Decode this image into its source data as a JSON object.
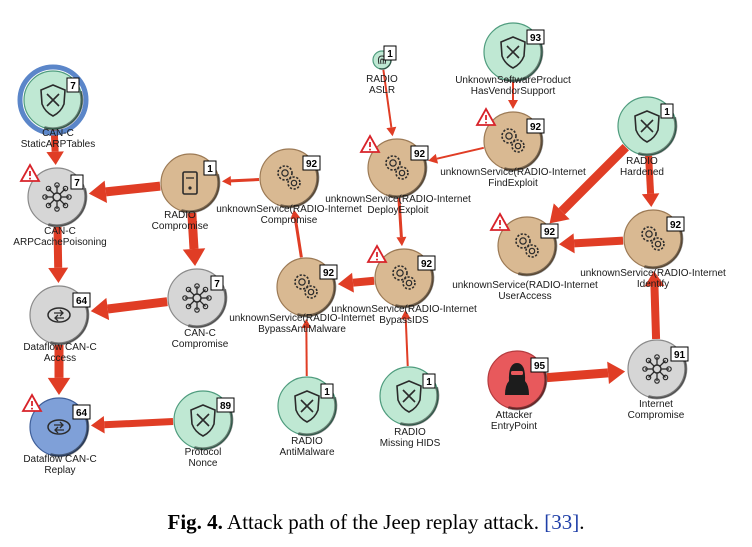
{
  "colors": {
    "edge": "#e03d25",
    "brown": "#d9b992",
    "brown_stroke": "#9c7a55",
    "green": "#bfe8d3",
    "green_stroke": "#4f9c7e",
    "gray": "#d6d6d6",
    "gray_stroke": "#8a8a8a",
    "blue": "#7fa0d8",
    "blue_ring": "#5b86c9",
    "attacker": "#e8595c"
  },
  "nodes": [
    {
      "id": "can_arp_tables",
      "label1": "CAN-C",
      "label2": "StaticARPTables",
      "badge": "7",
      "kind": "green",
      "icon": "shield-x-icon",
      "ring": true
    },
    {
      "id": "can_arp_poison",
      "label1": "CAN-C",
      "label2": "ARPCachePoisoning",
      "badge": "7",
      "kind": "gray",
      "icon": "network-hub-icon",
      "warn": true
    },
    {
      "id": "radio_compromise",
      "label1": "RADIO",
      "label2": "Compromise",
      "badge": "1",
      "kind": "brown",
      "icon": "server-icon"
    },
    {
      "id": "unk_compromise",
      "label1": "unknownService(RADIO-Internet",
      "label2": "Compromise",
      "badge": "92",
      "kind": "brown",
      "icon": "gears-icon"
    },
    {
      "id": "radio_aslr",
      "label1": "RADIO",
      "label2": "ASLR",
      "badge": "1",
      "kind": "green",
      "icon": "fingerprint-icon",
      "small": true
    },
    {
      "id": "unk_deploy",
      "label1": "unknownService(RADIO-Internet",
      "label2": "DeployExploit",
      "badge": "92",
      "kind": "brown",
      "icon": "gears-icon",
      "warn": true
    },
    {
      "id": "sw_vendor",
      "label1": "UnknownSoftwareProduct",
      "label2": "HasVendorSupport",
      "badge": "93",
      "kind": "green",
      "icon": "shield-x-icon"
    },
    {
      "id": "unk_findexploit",
      "label1": "unknownService(RADIO-Internet",
      "label2": "FindExploit",
      "badge": "92",
      "kind": "brown",
      "icon": "gears-icon",
      "warn": true
    },
    {
      "id": "radio_hardened",
      "label1": "RADIO",
      "label2": "Hardened",
      "badge": "1",
      "kind": "green",
      "icon": "shield-x-icon"
    },
    {
      "id": "unk_useraccess",
      "label1": "unknownService(RADIO-Internet",
      "label2": "UserAccess",
      "badge": "92",
      "kind": "brown",
      "icon": "gears-icon",
      "warn": true
    },
    {
      "id": "unk_identify",
      "label1": "unknownService(RADIO-Internet",
      "label2": "Identify",
      "badge": "92",
      "kind": "brown",
      "icon": "gears-icon"
    },
    {
      "id": "can_compromise",
      "label1": "CAN-C",
      "label2": "Compromise",
      "badge": "7",
      "kind": "gray",
      "icon": "network-hub-icon"
    },
    {
      "id": "dataflow_access",
      "label1": "Dataflow CAN-C",
      "label2": "Access",
      "badge": "64",
      "kind": "gray",
      "icon": "dataflow-icon"
    },
    {
      "id": "unk_bypassam",
      "label1": "unknownService(RADIO-Internet",
      "label2": "BypassAntiMalware",
      "badge": "92",
      "kind": "brown",
      "icon": "gears-icon"
    },
    {
      "id": "unk_bypassids",
      "label1": "unknownService(RADIO-Internet",
      "label2": "BypassIDS",
      "badge": "92",
      "kind": "brown",
      "icon": "gears-icon",
      "warn": true
    },
    {
      "id": "dataflow_replay",
      "label1": "Dataflow CAN-C",
      "label2": "Replay",
      "badge": "64",
      "kind": "blue",
      "icon": "dataflow-icon",
      "warn": true
    },
    {
      "id": "protocol_nonce",
      "label1": "Protocol",
      "label2": "Nonce",
      "badge": "89",
      "kind": "green",
      "icon": "shield-x-icon"
    },
    {
      "id": "radio_antimalware",
      "label1": "RADIO",
      "label2": "AntiMalware",
      "badge": "1",
      "kind": "green",
      "icon": "shield-x-icon"
    },
    {
      "id": "radio_hids",
      "label1": "RADIO",
      "label2": "Missing HIDS",
      "badge": "1",
      "kind": "green",
      "icon": "shield-x-icon"
    },
    {
      "id": "attacker",
      "label1": "Attacker",
      "label2": "EntryPoint",
      "badge": "95",
      "kind": "attacker",
      "icon": "hacker-icon"
    },
    {
      "id": "internet_compromise",
      "label1": "Internet",
      "label2": "Compromise",
      "badge": "91",
      "kind": "gray",
      "icon": "network-hub-icon"
    }
  ],
  "edges": [
    {
      "from": "can_arp_tables",
      "to": "can_arp_poison",
      "w": 7
    },
    {
      "from": "radio_compromise",
      "to": "can_arp_poison",
      "w": 9
    },
    {
      "from": "unk_compromise",
      "to": "radio_compromise",
      "w": 3
    },
    {
      "from": "radio_compromise",
      "to": "can_compromise",
      "w": 9
    },
    {
      "from": "can_arp_poison",
      "to": "dataflow_access",
      "w": 8
    },
    {
      "from": "can_compromise",
      "to": "dataflow_access",
      "w": 9
    },
    {
      "from": "dataflow_access",
      "to": "dataflow_replay",
      "w": 9
    },
    {
      "from": "protocol_nonce",
      "to": "dataflow_replay",
      "w": 7
    },
    {
      "from": "radio_aslr",
      "to": "unk_deploy",
      "w": 2
    },
    {
      "from": "unk_findexploit",
      "to": "unk_deploy",
      "w": 2
    },
    {
      "from": "sw_vendor",
      "to": "unk_findexploit",
      "w": 2
    },
    {
      "from": "unk_deploy",
      "to": "unk_bypassids",
      "w": 3
    },
    {
      "from": "unk_bypassids",
      "to": "unk_bypassam",
      "w": 8
    },
    {
      "from": "unk_bypassam",
      "to": "unk_compromise",
      "w": 3
    },
    {
      "from": "radio_antimalware",
      "to": "unk_bypassam",
      "w": 2
    },
    {
      "from": "radio_hids",
      "to": "unk_bypassids",
      "w": 2
    },
    {
      "from": "radio_hardened",
      "to": "unk_useraccess",
      "w": 9
    },
    {
      "from": "radio_hardened",
      "to": "unk_identify",
      "w": 7
    },
    {
      "from": "unk_identify",
      "to": "unk_useraccess",
      "w": 8
    },
    {
      "from": "internet_compromise",
      "to": "unk_identify",
      "w": 8
    },
    {
      "from": "attacker",
      "to": "internet_compromise",
      "w": 9
    }
  ],
  "caption": {
    "label": "Fig. 4.",
    "text": " Attack path of the Jeep replay attack. ",
    "cite": "[33]",
    "end": "."
  }
}
